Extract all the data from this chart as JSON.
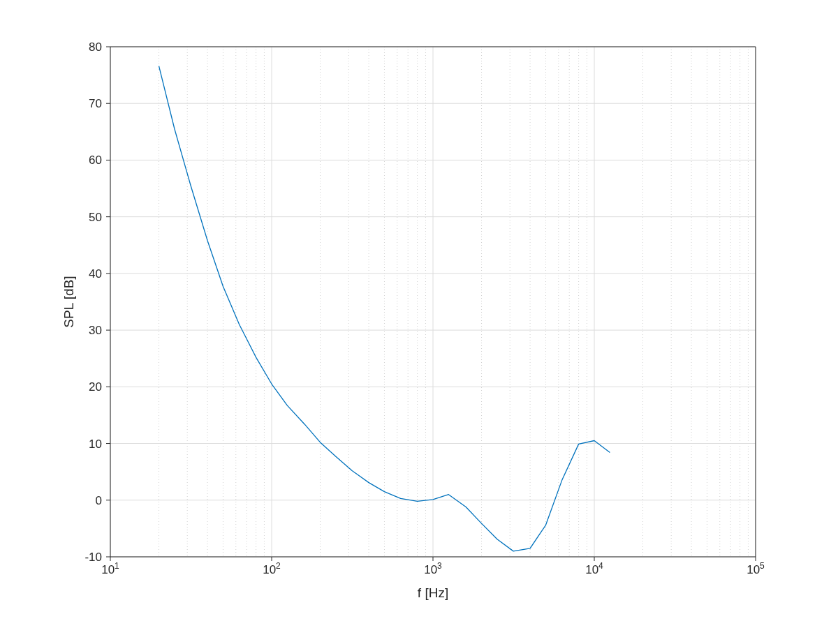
{
  "chart_data": {
    "type": "line",
    "xlabel": "f [Hz]",
    "ylabel": "SPL [dB]",
    "x": [
      20,
      25,
      31.5,
      40,
      50,
      63,
      80,
      100,
      125,
      160,
      200,
      250,
      315,
      400,
      500,
      630,
      800,
      1000,
      1250,
      1600,
      2000,
      2500,
      3150,
      4000,
      5000,
      6300,
      8000,
      10000,
      12500
    ],
    "series": [
      {
        "color": "#0072bd",
        "values": [
          76.6,
          65.5,
          55.5,
          45.8,
          37.7,
          31.0,
          25.2,
          20.5,
          16.7,
          13.4,
          10.2,
          7.7,
          5.2,
          3.1,
          1.5,
          0.3,
          -0.2,
          0.1,
          1.0,
          -1.2,
          -4.1,
          -6.9,
          -9.0,
          -8.5,
          -4.4,
          3.5,
          9.9,
          10.5,
          8.4
        ]
      }
    ],
    "log": "x",
    "xlim": [
      10,
      100000
    ],
    "xticks": [
      {
        "value": 10,
        "label": "10$^{1}$"
      },
      {
        "value": 100,
        "label": "10$^{2}$"
      },
      {
        "value": 1000,
        "label": "10$^{3}$"
      },
      {
        "value": 10000,
        "label": "10$^{4}$"
      },
      {
        "value": 100000,
        "label": "10$^{5}$"
      }
    ],
    "ylim": [
      -10,
      80
    ],
    "yticks": [
      -10,
      0,
      10,
      20,
      30,
      40,
      50,
      60,
      70,
      80
    ],
    "grid": true,
    "marker": "none",
    "line_style": "solid",
    "legend": false
  }
}
